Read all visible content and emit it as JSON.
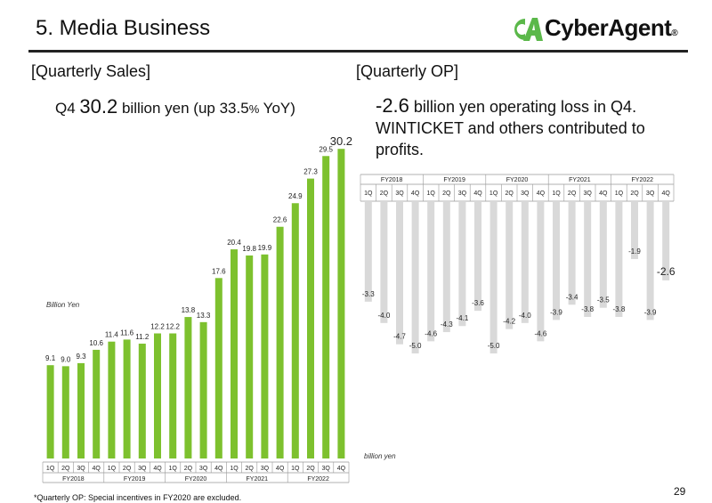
{
  "header": {
    "title": "5. Media Business",
    "logo_text": "CyberAgent",
    "logo_reg": "®"
  },
  "sales": {
    "heading": "[Quarterly Sales]",
    "q_label": "Q4",
    "value": "30.2",
    "text_mid": " billion yen (up ",
    "pct": "33.5",
    "pct_sign": "%",
    "text_end": " YoY)"
  },
  "op": {
    "heading": "[Quarterly OP]",
    "value": "-2.6",
    "text": " billion yen operating loss in Q4.",
    "text2": "WINTICKET and others contributed to profits."
  },
  "footnote": "*Quarterly OP: Special incentives in FY2020 are excluded.",
  "page_number": "29",
  "colors": {
    "sales_bar": "#7DC12E",
    "op_bar": "#D9D9D9",
    "logo_green": "#5BB84A"
  },
  "chart_data": [
    {
      "type": "bar",
      "title": "",
      "ylabel": "Billion Yen",
      "categories": [
        "1Q",
        "2Q",
        "3Q",
        "4Q",
        "1Q",
        "2Q",
        "3Q",
        "4Q",
        "1Q",
        "2Q",
        "3Q",
        "4Q",
        "1Q",
        "2Q",
        "3Q",
        "4Q",
        "1Q",
        "2Q",
        "3Q",
        "4Q"
      ],
      "groups": [
        "FY2018",
        "FY2019",
        "FY2020",
        "FY2021",
        "FY2022"
      ],
      "values": [
        9.1,
        9.0,
        9.3,
        10.6,
        11.4,
        11.6,
        11.2,
        12.2,
        12.2,
        13.8,
        13.3,
        17.6,
        20.4,
        19.8,
        19.9,
        22.6,
        24.9,
        27.3,
        29.5,
        30.2
      ],
      "labels": [
        "9.1",
        "9.0",
        "9.3",
        "10.6",
        "11.4",
        "11.6",
        "11.2",
        "12.2",
        "12.2",
        "13.8",
        "13.3",
        "17.6",
        "20.4",
        "19.8",
        "19.9",
        "22.6",
        "24.9",
        "27.3",
        "29.5",
        "30.2"
      ],
      "ylim": [
        0,
        31
      ],
      "grid": false
    },
    {
      "type": "bar",
      "title": "",
      "ylabel": "billion yen",
      "categories": [
        "1Q",
        "2Q",
        "3Q",
        "4Q",
        "1Q",
        "2Q",
        "3Q",
        "4Q",
        "1Q",
        "2Q",
        "3Q",
        "4Q",
        "1Q",
        "2Q",
        "3Q",
        "4Q",
        "1Q",
        "2Q",
        "3Q",
        "4Q"
      ],
      "groups": [
        "FY2018",
        "FY2019",
        "FY2020",
        "FY2021",
        "FY2022"
      ],
      "values": [
        -3.3,
        -4.0,
        -4.7,
        -5.0,
        -4.6,
        -4.3,
        -4.1,
        -3.6,
        -5.0,
        -4.2,
        -4.0,
        -4.6,
        -3.9,
        -3.4,
        -3.8,
        -3.5,
        -3.8,
        -1.9,
        -3.9,
        -2.6
      ],
      "labels": [
        "-3.3",
        "-4.0",
        "-4.7",
        "-5.0",
        "-4.6",
        "-4.3",
        "-4.1",
        "-3.6",
        "-5.0",
        "-4.2",
        "-4.0",
        "-4.6",
        "-3.9",
        "-3.4",
        "-3.8",
        "-3.5",
        "-3.8",
        "-1.9",
        "-3.9",
        "-2.6"
      ],
      "ylim": [
        -8.5,
        0
      ],
      "grid": false
    }
  ]
}
